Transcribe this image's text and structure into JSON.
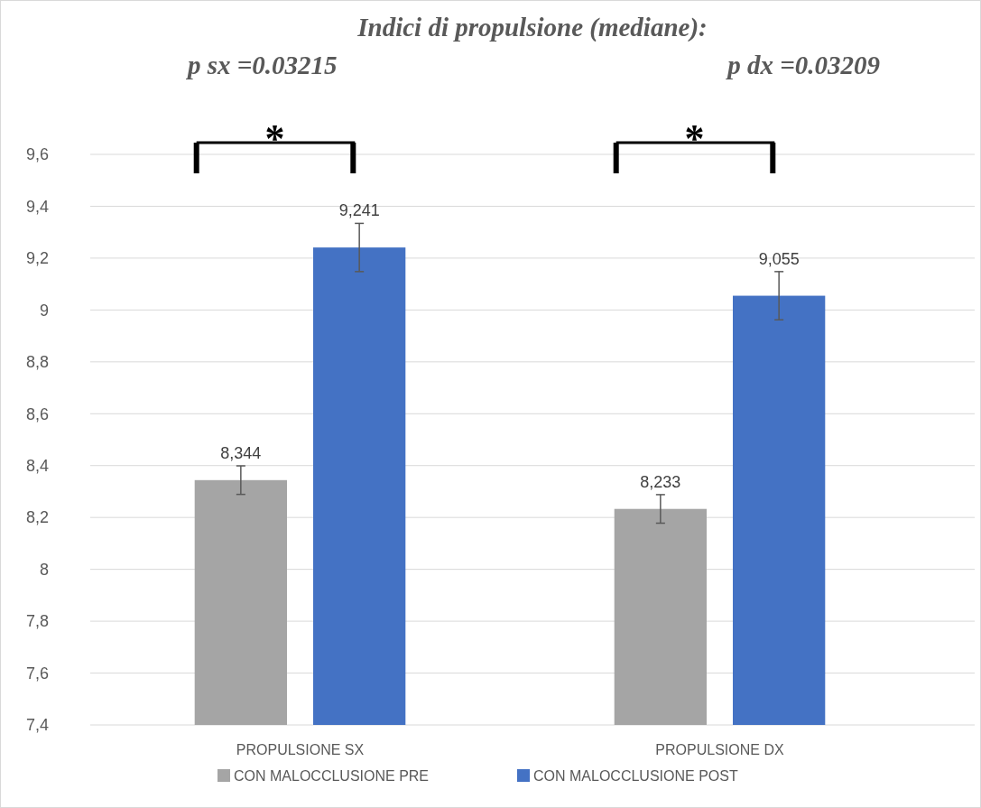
{
  "chart_data": {
    "type": "bar",
    "title": "Indici di propulsione (mediane):",
    "categories": [
      "PROPULSIONE SX",
      "PROPULSIONE DX"
    ],
    "series": [
      {
        "name": "CON MALOCCLUSIONE PRE",
        "color": "#a5a5a5",
        "values": [
          8.344,
          8.233
        ],
        "errors": [
          0.055,
          0.055
        ]
      },
      {
        "name": "CON MALOCCLUSIONE POST",
        "color": "#4472c4",
        "values": [
          9.241,
          9.055
        ],
        "errors": [
          0.093,
          0.093
        ]
      }
    ],
    "ylim": [
      7.4,
      9.6
    ],
    "yticks": [
      {
        "value": 7.4,
        "label": "7,4"
      },
      {
        "value": 7.6,
        "label": "7,6"
      },
      {
        "value": 7.8,
        "label": "7,8"
      },
      {
        "value": 8,
        "label": "8"
      },
      {
        "value": 8.2,
        "label": "8,2"
      },
      {
        "value": 8.4,
        "label": "8,4"
      },
      {
        "value": 8.6,
        "label": "8,6"
      },
      {
        "value": 8.8,
        "label": "8,8"
      },
      {
        "value": 9,
        "label": "9"
      },
      {
        "value": 9.2,
        "label": "9,2"
      },
      {
        "value": 9.4,
        "label": "9,4"
      },
      {
        "value": 9.6,
        "label": "9,6"
      }
    ],
    "value_labels": [
      [
        "8,344",
        "8,233"
      ],
      [
        "9,241",
        "9,055"
      ]
    ],
    "annotations": [
      "p sx =0.03215",
      "p dx =0.03209",
      "*",
      "*"
    ],
    "grid": "y",
    "legend": "bottom"
  }
}
